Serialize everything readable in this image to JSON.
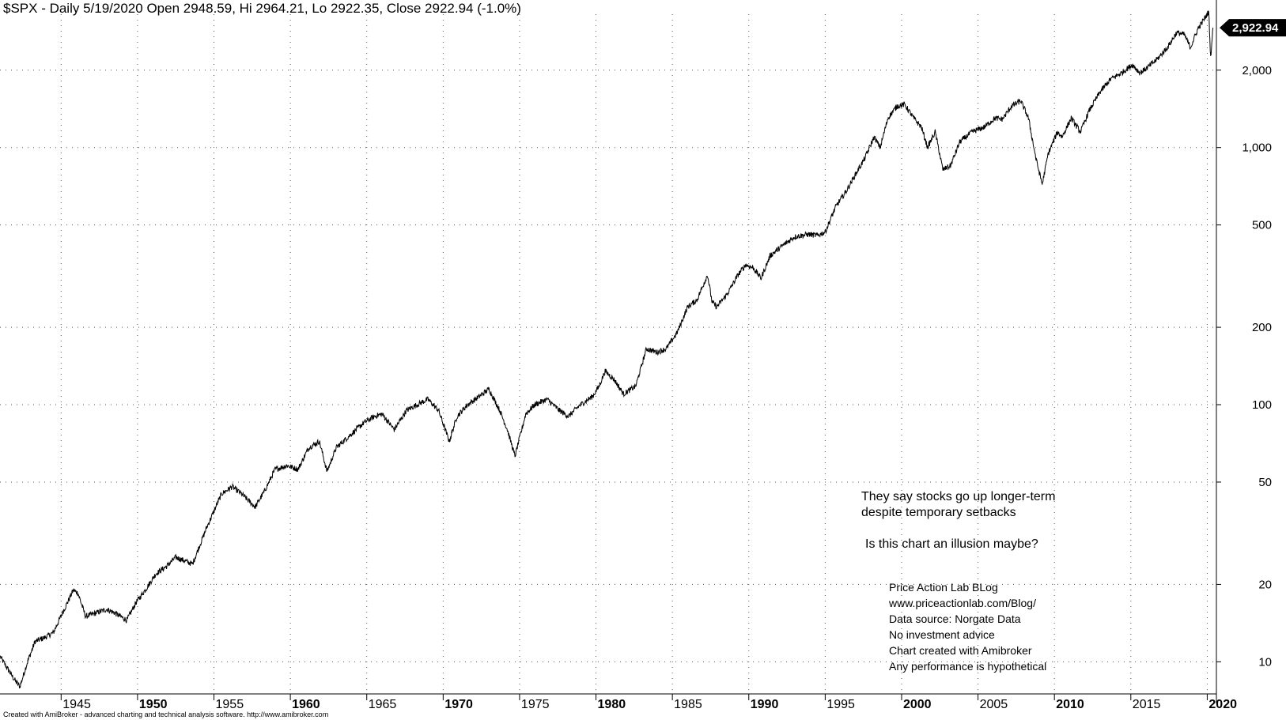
{
  "header": {
    "title": "$SPX - Daily 5/19/2020 Open 2948.59, Hi 2964.21, Lo 2922.35, Close 2922.94 (-1.0%)"
  },
  "annotations": {
    "line1": "They say stocks go up longer-term",
    "line2": "despite temporary setbacks",
    "line3": "Is this chart an illusion maybe?"
  },
  "info": [
    "Price Action Lab BLog",
    "www.priceactionlab.com/Blog/",
    "Data source: Norgate Data",
    "No investment advice",
    "Chart created with Amibroker",
    "Any performance is hypothetical"
  ],
  "footer": {
    "credit": "Created with AmiBroker - advanced charting and technical analysis software. http://www.amibroker.com"
  },
  "colors": {
    "line": "#000000",
    "grid": "#555555",
    "background": "#ffffff",
    "price_label_bg": "#000000",
    "price_label_text": "#ffffff"
  },
  "chart_data": {
    "type": "line",
    "title": "$SPX - Daily 5/19/2020 Open 2948.59, Hi 2964.21, Lo 2922.35, Close 2922.94 (-1.0%)",
    "xlabel": "",
    "ylabel": "",
    "y_scale": "log",
    "grid": true,
    "x_ticks": [
      "1945",
      "1950",
      "1955",
      "1960",
      "1965",
      "1970",
      "1975",
      "1980",
      "1985",
      "1990",
      "1995",
      "2000",
      "2005",
      "2010",
      "2015",
      "2020"
    ],
    "x_ticks_major": [
      "1950",
      "1960",
      "1970",
      "1980",
      "1990",
      "2000",
      "2010",
      "2020"
    ],
    "y_ticks": [
      10,
      20,
      50,
      100,
      200,
      500,
      1000,
      2000
    ],
    "y_tick_labels": [
      "10",
      "20",
      "50",
      "100",
      "200",
      "500",
      "1,000",
      "2,000"
    ],
    "xlim": [
      1941.0,
      2020.6
    ],
    "ylim_log_range": [
      7.5,
      3300
    ],
    "last_value": 2922.94,
    "last_value_label": "2,922.94",
    "x": [
      1941.0,
      1941.4,
      1941.9,
      1942.3,
      1942.8,
      1943.3,
      1943.9,
      1944.5,
      1945.2,
      1945.8,
      1946.1,
      1946.6,
      1947.3,
      1948.0,
      1948.5,
      1949.3,
      1949.9,
      1950.5,
      1951.2,
      1951.9,
      1952.5,
      1953.6,
      1954.5,
      1955.5,
      1956.2,
      1956.8,
      1957.7,
      1958.3,
      1959.0,
      1959.8,
      1960.5,
      1961.2,
      1961.9,
      1962.4,
      1963.0,
      1963.9,
      1964.8,
      1965.5,
      1966.0,
      1966.8,
      1967.6,
      1968.3,
      1969.0,
      1969.7,
      1970.4,
      1970.9,
      1971.6,
      1972.3,
      1973.0,
      1973.7,
      1974.2,
      1974.7,
      1975.4,
      1976.0,
      1976.8,
      1977.6,
      1978.2,
      1978.9,
      1979.8,
      1980.2,
      1980.6,
      1981.2,
      1981.8,
      1982.6,
      1983.3,
      1984.0,
      1984.6,
      1985.3,
      1986.0,
      1986.6,
      1987.3,
      1987.6,
      1987.9,
      1988.6,
      1989.3,
      1989.8,
      1990.3,
      1990.8,
      1991.4,
      1992.2,
      1993.0,
      1993.9,
      1994.5,
      1995.0,
      1995.7,
      1996.4,
      1997.0,
      1997.6,
      1998.2,
      1998.6,
      1999.1,
      1999.7,
      2000.2,
      2000.8,
      2001.3,
      2001.7,
      2002.2,
      2002.7,
      2003.2,
      2003.8,
      2004.6,
      2005.4,
      2006.1,
      2006.6,
      2007.2,
      2007.8,
      2008.3,
      2008.8,
      2009.2,
      2009.6,
      2010.2,
      2010.5,
      2011.1,
      2011.7,
      2012.3,
      2013.0,
      2013.7,
      2014.4,
      2015.1,
      2015.6,
      2016.1,
      2016.7,
      2017.4,
      2018.0,
      2018.5,
      2018.9,
      2019.4,
      2019.9,
      2020.1,
      2020.22,
      2020.38
    ],
    "y": [
      10.5,
      9.6,
      8.6,
      8.0,
      10.0,
      12.0,
      12.4,
      13.0,
      16.0,
      19.0,
      18.5,
      15.0,
      15.5,
      16.0,
      15.5,
      14.5,
      17.0,
      19.0,
      22.0,
      23.5,
      25.5,
      24.0,
      33.0,
      45.0,
      48.0,
      45.0,
      40.0,
      46.0,
      56.0,
      58.0,
      56.0,
      68.0,
      72.0,
      55.0,
      68.0,
      76.0,
      85.0,
      90.0,
      92.0,
      80.0,
      95.0,
      100.0,
      105.0,
      95.0,
      72.0,
      90.0,
      100.0,
      107.0,
      115.0,
      95.0,
      80.0,
      63.0,
      92.0,
      100.0,
      105.0,
      95.0,
      90.0,
      99.0,
      108.0,
      118.0,
      135.0,
      125.0,
      110.0,
      118.0,
      165.0,
      160.0,
      165.0,
      190.0,
      240.0,
      255.0,
      320.0,
      250.0,
      240.0,
      270.0,
      320.0,
      350.0,
      340.0,
      310.0,
      380.0,
      415.0,
      450.0,
      460.0,
      455.0,
      470.0,
      590.0,
      680.0,
      790.0,
      910.0,
      1100.0,
      1000.0,
      1300.0,
      1450.0,
      1470.0,
      1300.0,
      1200.0,
      1000.0,
      1150.0,
      820.0,
      850.0,
      1050.0,
      1150.0,
      1200.0,
      1300.0,
      1290.0,
      1450.0,
      1520.0,
      1300.0,
      900.0,
      720.0,
      950.0,
      1150.0,
      1100.0,
      1300.0,
      1150.0,
      1400.0,
      1650.0,
      1850.0,
      1950.0,
      2100.0,
      1950.0,
      2050.0,
      2200.0,
      2450.0,
      2800.0,
      2750.0,
      2450.0,
      2900.0,
      3230.0,
      3380.0,
      2240.0,
      2922.94
    ]
  }
}
